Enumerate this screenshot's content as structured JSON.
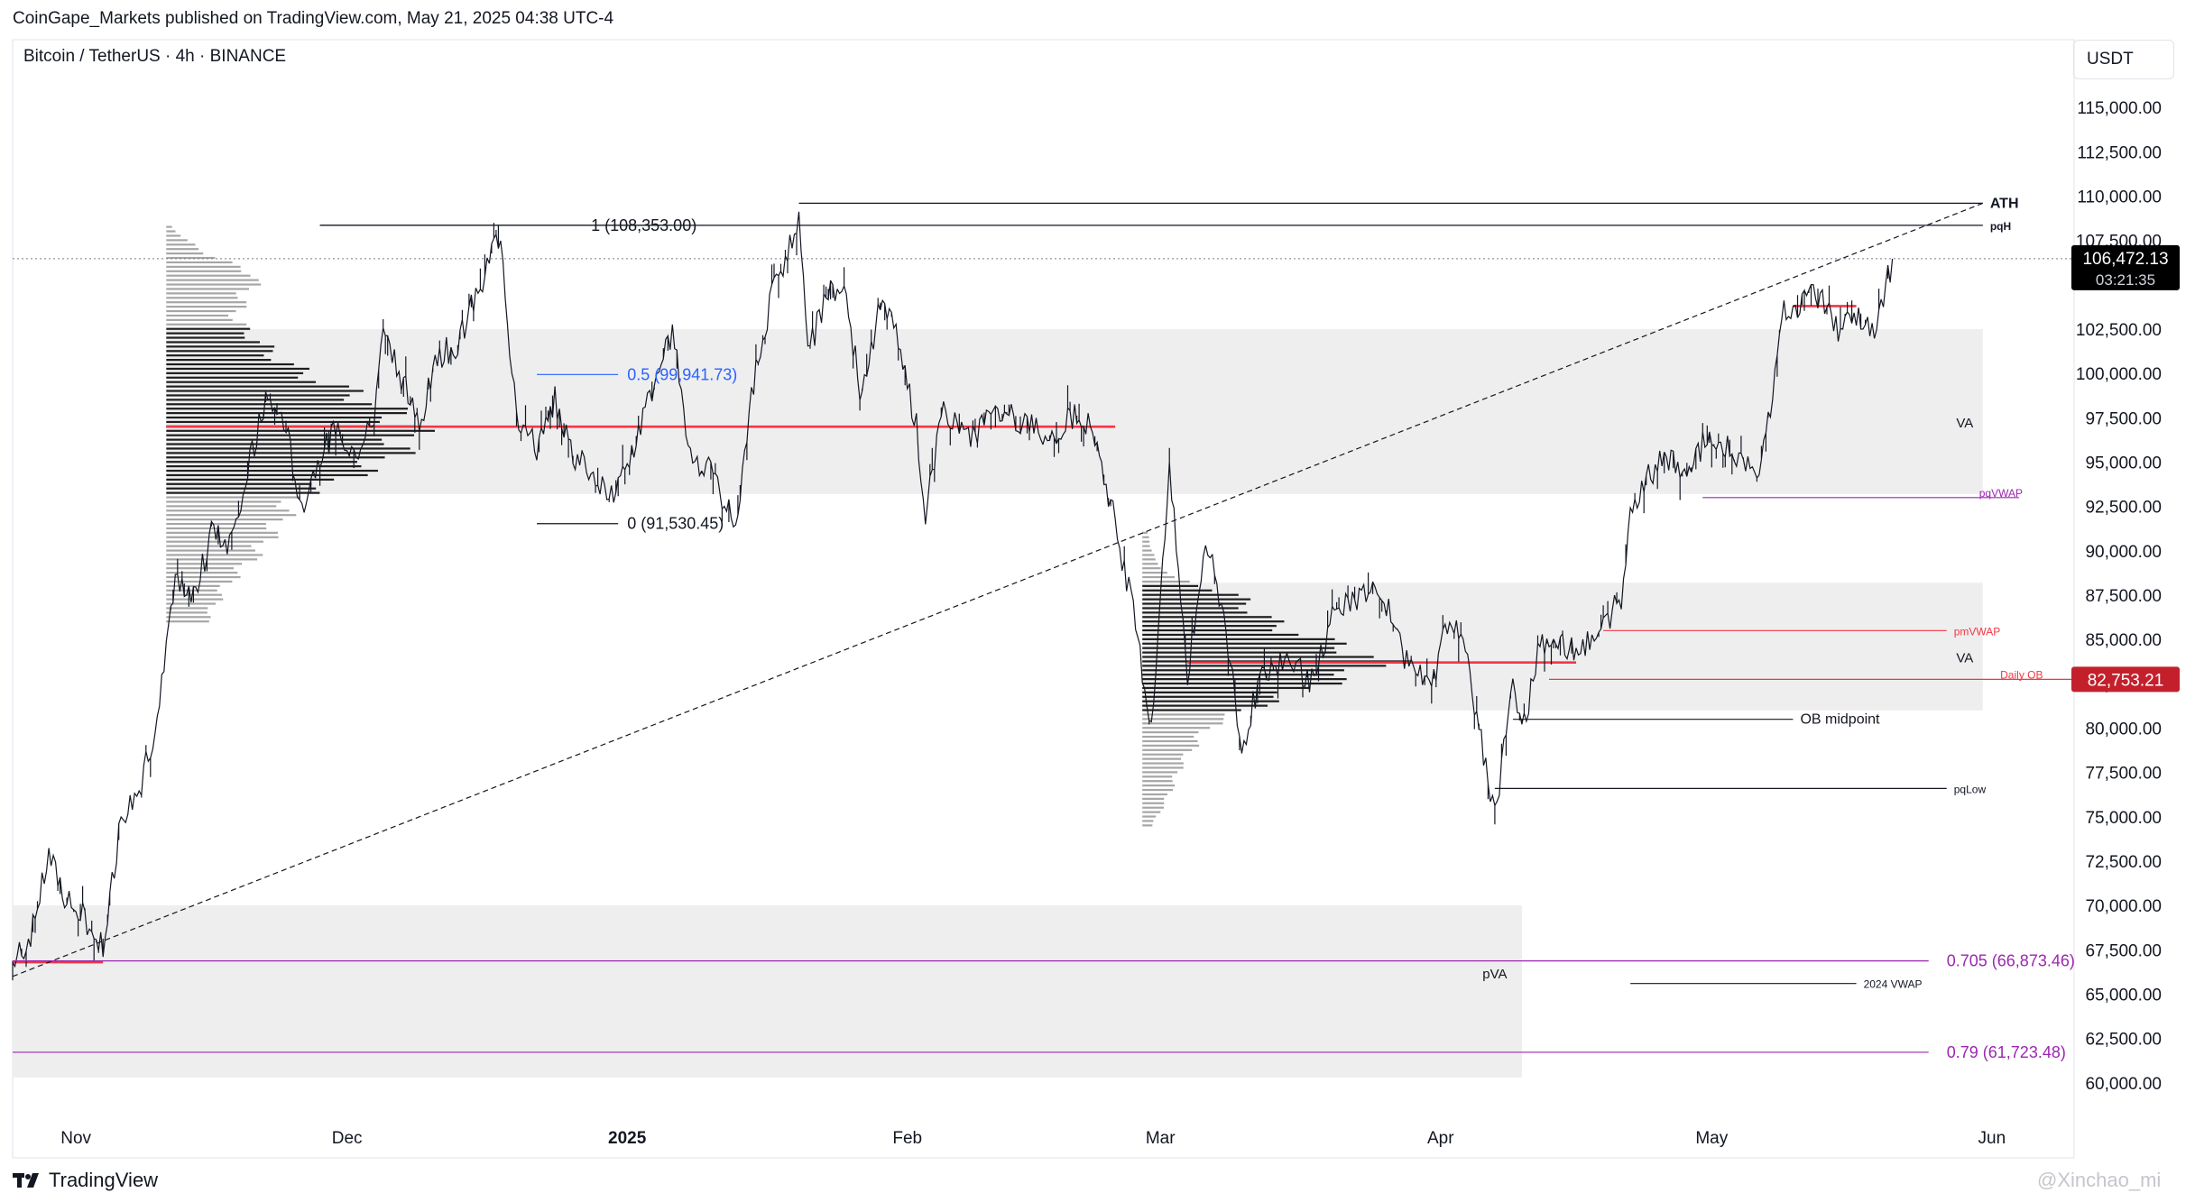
{
  "header": {
    "publisher": "CoinGape_Markets published on TradingView.com, May 21, 2025 04:38 UTC-4",
    "symbol": "Bitcoin / TetherUS · 4h · BINANCE",
    "currency": "USDT"
  },
  "footer": {
    "logo_text": "TradingView",
    "watermark": "@Xinchao_mi"
  },
  "colors": {
    "accent_red": "#f23645",
    "fib_purple": "#9c27b0",
    "fib_blue": "#2962ff",
    "zone_fill": "#eeeeee",
    "profile_dark": "#1e1e1e",
    "profile_light": "#a6a6a6",
    "last_price_bg": "#000000",
    "daily_ob_bg": "#c4202c"
  },
  "chart_data": {
    "type": "line",
    "title": "",
    "xlabel": "",
    "ylabel": "",
    "ylim": [
      57500,
      117500
    ],
    "xlim": [
      "2024-10-25",
      "2025-06-10"
    ],
    "x_ticks": [
      {
        "date": "2024-11-01",
        "label": "Nov",
        "bold": false
      },
      {
        "date": "2024-12-01",
        "label": "Dec",
        "bold": false
      },
      {
        "date": "2025-01-01",
        "label": "2025",
        "bold": true
      },
      {
        "date": "2025-02-01",
        "label": "Feb",
        "bold": false
      },
      {
        "date": "2025-03-01",
        "label": "Mar",
        "bold": false
      },
      {
        "date": "2025-04-01",
        "label": "Apr",
        "bold": false
      },
      {
        "date": "2025-05-01",
        "label": "May",
        "bold": false
      },
      {
        "date": "2025-06-01",
        "label": "Jun",
        "bold": false
      }
    ],
    "y_ticks": [
      {
        "value": 60000,
        "label": "60,000.00"
      },
      {
        "value": 62500,
        "label": "62,500.00"
      },
      {
        "value": 65000,
        "label": "65,000.00"
      },
      {
        "value": 67500,
        "label": "67,500.00"
      },
      {
        "value": 70000,
        "label": "70,000.00"
      },
      {
        "value": 72500,
        "label": "72,500.00"
      },
      {
        "value": 75000,
        "label": "75,000.00"
      },
      {
        "value": 77500,
        "label": "77,500.00"
      },
      {
        "value": 80000,
        "label": "80,000.00"
      },
      {
        "value": 82500,
        "label": "82,500.00"
      },
      {
        "value": 85000,
        "label": "85,000.00"
      },
      {
        "value": 87500,
        "label": "87,500.00"
      },
      {
        "value": 90000,
        "label": "90,000.00"
      },
      {
        "value": 92500,
        "label": "92,500.00"
      },
      {
        "value": 95000,
        "label": "95,000.00"
      },
      {
        "value": 97500,
        "label": "97,500.00"
      },
      {
        "value": 100000,
        "label": "100,000.00"
      },
      {
        "value": 102500,
        "label": "102,500.00"
      },
      {
        "value": 107500,
        "label": "107,500.00"
      },
      {
        "value": 110000,
        "label": "110,000.00"
      },
      {
        "value": 112500,
        "label": "112,500.00"
      },
      {
        "value": 115000,
        "label": "115,000.00"
      }
    ],
    "series": [
      {
        "points": [
          [
            "2024-10-25",
            66800
          ],
          [
            "2024-10-27",
            68200
          ],
          [
            "2024-10-29",
            72800
          ],
          [
            "2024-10-31",
            70200
          ],
          [
            "2024-11-02",
            69300
          ],
          [
            "2024-11-04",
            67700
          ],
          [
            "2024-11-06",
            75000
          ],
          [
            "2024-11-08",
            76500
          ],
          [
            "2024-11-10",
            80500
          ],
          [
            "2024-11-12",
            88000
          ],
          [
            "2024-11-14",
            87200
          ],
          [
            "2024-11-16",
            91000
          ],
          [
            "2024-11-18",
            90500
          ],
          [
            "2024-11-20",
            94500
          ],
          [
            "2024-11-22",
            98500
          ],
          [
            "2024-11-24",
            97500
          ],
          [
            "2024-11-26",
            92500
          ],
          [
            "2024-11-28",
            95500
          ],
          [
            "2024-11-30",
            97000
          ],
          [
            "2024-12-02",
            95500
          ],
          [
            "2024-12-04",
            97500
          ],
          [
            "2024-12-05",
            103000
          ],
          [
            "2024-12-07",
            99800
          ],
          [
            "2024-12-09",
            97000
          ],
          [
            "2024-12-11",
            101000
          ],
          [
            "2024-12-13",
            101500
          ],
          [
            "2024-12-15",
            104000
          ],
          [
            "2024-12-17",
            106800
          ],
          [
            "2024-12-18",
            108100
          ],
          [
            "2024-12-19",
            101500
          ],
          [
            "2024-12-20",
            97500
          ],
          [
            "2024-12-22",
            95800
          ],
          [
            "2024-12-24",
            98500
          ],
          [
            "2024-12-26",
            95500
          ],
          [
            "2024-12-28",
            94500
          ],
          [
            "2024-12-30",
            92800
          ],
          [
            "2025-01-01",
            94500
          ],
          [
            "2025-01-03",
            98000
          ],
          [
            "2025-01-06",
            102300
          ],
          [
            "2025-01-08",
            95500
          ],
          [
            "2025-01-10",
            94500
          ],
          [
            "2025-01-13",
            91500
          ],
          [
            "2025-01-15",
            99500
          ],
          [
            "2025-01-17",
            104500
          ],
          [
            "2025-01-20",
            108500
          ],
          [
            "2025-01-21",
            101000
          ],
          [
            "2025-01-23",
            104500
          ],
          [
            "2025-01-25",
            104800
          ],
          [
            "2025-01-27",
            98500
          ],
          [
            "2025-01-29",
            104000
          ],
          [
            "2025-01-31",
            102000
          ],
          [
            "2025-02-02",
            97000
          ],
          [
            "2025-02-03",
            92000
          ],
          [
            "2025-02-05",
            98000
          ],
          [
            "2025-02-08",
            96500
          ],
          [
            "2025-02-11",
            97800
          ],
          [
            "2025-02-14",
            97200
          ],
          [
            "2025-02-17",
            96500
          ],
          [
            "2025-02-20",
            98000
          ],
          [
            "2025-02-22",
            96200
          ],
          [
            "2025-02-24",
            91500
          ],
          [
            "2025-02-26",
            86500
          ],
          [
            "2025-02-28",
            80000
          ],
          [
            "2025-03-02",
            94500
          ],
          [
            "2025-03-04",
            83000
          ],
          [
            "2025-03-06",
            90500
          ],
          [
            "2025-03-08",
            86500
          ],
          [
            "2025-03-10",
            78500
          ],
          [
            "2025-03-12",
            83000
          ],
          [
            "2025-03-15",
            84000
          ],
          [
            "2025-03-18",
            82500
          ],
          [
            "2025-03-20",
            86500
          ],
          [
            "2025-03-24",
            87800
          ],
          [
            "2025-03-26",
            87000
          ],
          [
            "2025-03-28",
            84000
          ],
          [
            "2025-03-31",
            82200
          ],
          [
            "2025-04-02",
            86500
          ],
          [
            "2025-04-04",
            83500
          ],
          [
            "2025-04-06",
            78000
          ],
          [
            "2025-04-07",
            75000
          ],
          [
            "2025-04-09",
            82500
          ],
          [
            "2025-04-10",
            79500
          ],
          [
            "2025-04-12",
            85000
          ],
          [
            "2025-04-15",
            84500
          ],
          [
            "2025-04-18",
            84800
          ],
          [
            "2025-04-21",
            87500
          ],
          [
            "2025-04-22",
            92500
          ],
          [
            "2025-04-25",
            95000
          ],
          [
            "2025-04-28",
            94800
          ],
          [
            "2025-05-01",
            96500
          ],
          [
            "2025-05-03",
            95800
          ],
          [
            "2025-05-06",
            94000
          ],
          [
            "2025-05-08",
            99500
          ],
          [
            "2025-05-09",
            103500
          ],
          [
            "2025-05-11",
            104000
          ],
          [
            "2025-05-13",
            104500
          ],
          [
            "2025-05-15",
            102500
          ],
          [
            "2025-05-17",
            103500
          ],
          [
            "2025-05-19",
            102000
          ],
          [
            "2025-05-21",
            106472
          ]
        ]
      }
    ],
    "last_price": {
      "value": 106472.13,
      "label": "106,472.13",
      "countdown": "03:21:35"
    },
    "levels": [
      {
        "name": "ATH",
        "value": 109600,
        "x_start": "2025-01-20",
        "x_end": "2025-05-31"
      },
      {
        "name": "pqH",
        "value": 108353,
        "x_start": "2024-11-28",
        "x_end": "2025-05-31"
      },
      {
        "name": "pqVWAP",
        "value": 93000,
        "x_start": "2025-04-30",
        "x_end": "2025-06-04"
      },
      {
        "name": "pmVWAP",
        "value": 85500,
        "x_start": "2025-04-19",
        "x_end": "2025-05-27"
      },
      {
        "name": "Daily OB",
        "value": 82753.21,
        "label": "82,753.21",
        "x_start": "2025-04-13",
        "x_end": "2025-06-10"
      },
      {
        "name": "OB midpoint",
        "value": 80500,
        "x_start": "2025-04-09",
        "x_end": "2025-05-10"
      },
      {
        "name": "pqLow",
        "value": 76600,
        "x_start": "2025-04-07",
        "x_end": "2025-05-27"
      },
      {
        "name": "2024 VWAP",
        "value": 65600,
        "x_start": "2025-04-22",
        "x_end": "2025-05-17"
      }
    ],
    "fibonacci": [
      {
        "label": "1 (108,353.00)",
        "value": 108353
      },
      {
        "label": "0.5 (99,941.73)",
        "value": 99941.73
      },
      {
        "label": "0 (91,530.45)",
        "value": 91530.45
      },
      {
        "label": "0.705 (66,873.46)",
        "value": 66873.46
      },
      {
        "label": "0.79 (61,723.48)",
        "value": 61723.48
      }
    ],
    "poc_levels": [
      {
        "value": 97000,
        "x_start": "2024-11-11",
        "x_end": "2025-02-24"
      },
      {
        "value": 83700,
        "x_start": "2025-03-04",
        "x_end": "2025-04-16"
      },
      {
        "value": 66800,
        "x_start": "2024-10-25",
        "x_end": "2024-11-04"
      },
      {
        "value": 103800,
        "x_start": "2025-05-10",
        "x_end": "2025-05-17"
      }
    ],
    "zones": [
      {
        "label": "VA",
        "y_low": 93200,
        "y_high": 102500,
        "x_start": "2024-11-11",
        "x_end": "2025-05-31"
      },
      {
        "label": "VA",
        "y_low": 81000,
        "y_high": 88200,
        "x_start": "2025-02-27",
        "x_end": "2025-05-31"
      },
      {
        "label": "pVA",
        "y_low": 60300,
        "y_high": 70000,
        "x_start": "2024-10-25",
        "x_end": "2025-04-10"
      }
    ],
    "trendline": {
      "from": [
        "2024-10-25",
        66000
      ],
      "to": [
        "2025-05-31",
        109600
      ]
    },
    "current_price_line": 106472.13,
    "volume_profiles": [
      {
        "anchor": "2024-11-11",
        "value_area": [
          93200,
          102500
        ],
        "poc": 97000,
        "profile": [
          [
            86000,
            0.16
          ],
          [
            88000,
            0.24
          ],
          [
            90000,
            0.38
          ],
          [
            92000,
            0.48
          ],
          [
            93000,
            0.52
          ],
          [
            94000,
            0.72
          ],
          [
            95000,
            0.88
          ],
          [
            96000,
            0.97
          ],
          [
            97000,
            1.0
          ],
          [
            98000,
            0.9
          ],
          [
            99000,
            0.74
          ],
          [
            100000,
            0.56
          ],
          [
            101000,
            0.44
          ],
          [
            102000,
            0.36
          ],
          [
            103000,
            0.28
          ],
          [
            104500,
            0.32
          ],
          [
            105500,
            0.38
          ],
          [
            106500,
            0.2
          ],
          [
            107500,
            0.08
          ],
          [
            108300,
            0.02
          ]
        ]
      },
      {
        "anchor": "2025-02-27",
        "value_area": [
          81000,
          88200
        ],
        "poc": 83700,
        "profile": [
          [
            74500,
            0.04
          ],
          [
            76000,
            0.1
          ],
          [
            78000,
            0.16
          ],
          [
            80000,
            0.26
          ],
          [
            81000,
            0.42
          ],
          [
            82000,
            0.62
          ],
          [
            83000,
            0.86
          ],
          [
            83700,
            1.0
          ],
          [
            84500,
            0.84
          ],
          [
            85500,
            0.6
          ],
          [
            86500,
            0.46
          ],
          [
            87500,
            0.38
          ],
          [
            88500,
            0.12
          ],
          [
            89500,
            0.05
          ],
          [
            91000,
            0.02
          ]
        ]
      }
    ]
  }
}
